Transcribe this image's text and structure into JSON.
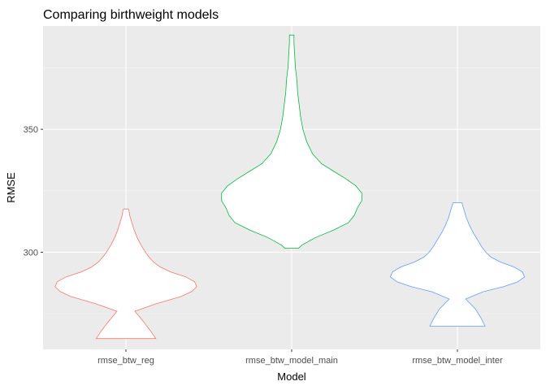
{
  "chart_data": {
    "type": "violin",
    "title": "Comparing birthweight models",
    "xlabel": "Model",
    "ylabel": "RMSE",
    "categories": [
      "rmse_btw_reg",
      "rmse_btw_model_main",
      "rmse_btw_model_inter"
    ],
    "y_ticks": [
      300,
      350
    ],
    "y_tick_labels": [
      "300",
      "350"
    ],
    "ylim": [
      260.5,
      392
    ],
    "grid": true,
    "background": "#ebebeb",
    "series": [
      {
        "category": "rmse_btw_reg",
        "color": "#f8766d",
        "min": 264.9,
        "max": 317.6,
        "density_profile": [
          [
            264.9,
            0.4
          ],
          [
            268,
            0.33
          ],
          [
            272,
            0.23
          ],
          [
            276,
            0.12
          ],
          [
            279,
            0.4
          ],
          [
            282,
            0.74
          ],
          [
            284,
            0.88
          ],
          [
            286,
            0.95
          ],
          [
            288,
            0.92
          ],
          [
            290,
            0.8
          ],
          [
            292,
            0.6
          ],
          [
            294,
            0.46
          ],
          [
            296,
            0.37
          ],
          [
            298,
            0.31
          ],
          [
            300,
            0.26
          ],
          [
            303,
            0.2
          ],
          [
            306,
            0.15
          ],
          [
            309,
            0.11
          ],
          [
            312,
            0.08
          ],
          [
            315,
            0.05
          ],
          [
            317,
            0.04
          ],
          [
            317.6,
            0.03
          ]
        ]
      },
      {
        "category": "rmse_btw_model_main",
        "color": "#00ba38",
        "min": 301.6,
        "max": 388.3,
        "density_profile": [
          [
            301.6,
            0.09
          ],
          [
            303,
            0.14
          ],
          [
            306,
            0.32
          ],
          [
            309,
            0.56
          ],
          [
            312,
            0.76
          ],
          [
            315,
            0.84
          ],
          [
            318,
            0.88
          ],
          [
            321,
            0.94
          ],
          [
            324,
            0.94
          ],
          [
            327,
            0.86
          ],
          [
            330,
            0.72
          ],
          [
            333,
            0.56
          ],
          [
            336,
            0.4
          ],
          [
            340,
            0.28
          ],
          [
            345,
            0.2
          ],
          [
            350,
            0.15
          ],
          [
            355,
            0.12
          ],
          [
            360,
            0.1
          ],
          [
            365,
            0.08
          ],
          [
            370,
            0.07
          ],
          [
            375,
            0.05
          ],
          [
            380,
            0.04
          ],
          [
            385,
            0.03
          ],
          [
            388.3,
            0.03
          ]
        ]
      },
      {
        "category": "rmse_btw_model_inter",
        "color": "#619cff",
        "min": 269.9,
        "max": 320.1,
        "density_profile": [
          [
            269.9,
            0.37
          ],
          [
            273,
            0.32
          ],
          [
            277,
            0.24
          ],
          [
            281,
            0.11
          ],
          [
            284,
            0.35
          ],
          [
            286,
            0.62
          ],
          [
            288,
            0.81
          ],
          [
            290,
            0.9
          ],
          [
            292,
            0.87
          ],
          [
            294,
            0.76
          ],
          [
            296,
            0.58
          ],
          [
            298,
            0.45
          ],
          [
            300,
            0.38
          ],
          [
            302,
            0.33
          ],
          [
            305,
            0.27
          ],
          [
            308,
            0.21
          ],
          [
            311,
            0.16
          ],
          [
            314,
            0.12
          ],
          [
            317,
            0.09
          ],
          [
            319,
            0.07
          ],
          [
            320.1,
            0.06
          ]
        ]
      }
    ]
  }
}
